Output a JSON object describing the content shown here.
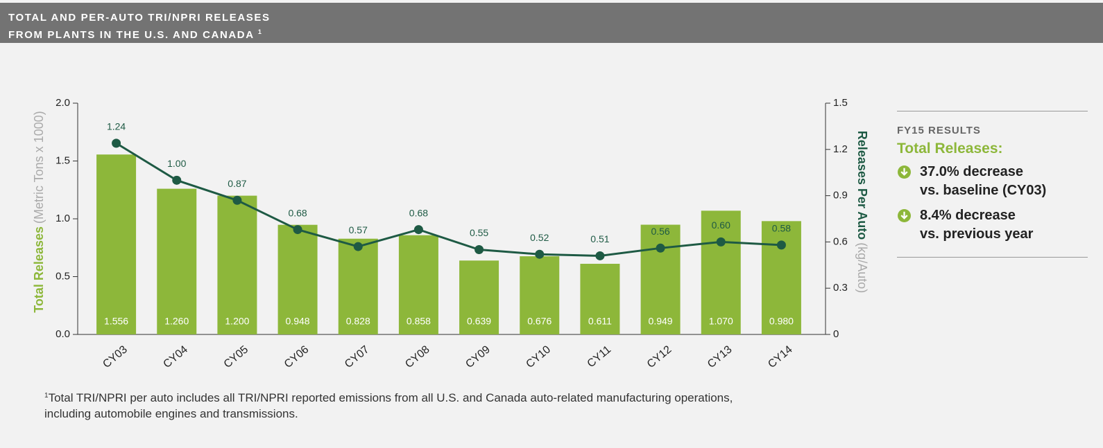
{
  "header": {
    "title_lines": [
      "TOTAL AND PER-AUTO TRI/NPRI RELEASES",
      "FROM PLANTS IN THE U.S. AND CANADA"
    ],
    "note_marker": "1"
  },
  "chart_data": {
    "type": "bar",
    "categories": [
      "CY03",
      "CY04",
      "CY05",
      "CY06",
      "CY07",
      "CY08",
      "CY09",
      "CY10",
      "CY11",
      "CY12",
      "CY13",
      "CY14"
    ],
    "series": [
      {
        "type": "bar",
        "color": "#8db73a",
        "values": [
          1.556,
          1.26,
          1.2,
          0.948,
          0.828,
          0.858,
          0.639,
          0.676,
          0.611,
          0.949,
          1.07,
          0.98
        ],
        "value_labels": [
          "1.556",
          "1.260",
          "1.200",
          "0.948",
          "0.828",
          "0.858",
          "0.639",
          "0.676",
          "0.611",
          "0.949",
          "1.070",
          "0.980"
        ]
      },
      {
        "type": "line",
        "axis": "y2",
        "color": "#1e5a44",
        "values": [
          1.24,
          1.0,
          0.87,
          0.68,
          0.57,
          0.68,
          0.55,
          0.52,
          0.51,
          0.56,
          0.6,
          0.58
        ],
        "value_labels": [
          "1.24",
          "1.00",
          "0.87",
          "0.68",
          "0.57",
          "0.68",
          "0.55",
          "0.52",
          "0.51",
          "0.56",
          "0.60",
          "0.58"
        ]
      }
    ],
    "ylabel": {
      "text": "Total Releases",
      "unit": "(Metric Tons x 1000)"
    },
    "y2label": {
      "text": "Releases Per Auto",
      "unit": "(kg/Auto)"
    },
    "ylim": [
      0,
      2
    ],
    "yticks": [
      {
        "value": 0,
        "label": "0.0"
      },
      {
        "value": 0.5,
        "label": "0.5"
      },
      {
        "value": 1,
        "label": "1.0"
      },
      {
        "value": 1.5,
        "label": "1.5"
      },
      {
        "value": 2,
        "label": "2.0"
      }
    ],
    "y2lim": [
      0,
      1.5
    ],
    "y2ticks": [
      0,
      0.3,
      0.6,
      0.9,
      1.2,
      1.5
    ]
  },
  "results": {
    "heading": "FY15 RESULTS",
    "subheading": "Total Releases:",
    "items": [
      [
        "37.0% decrease",
        "vs. baseline (CY03)"
      ],
      [
        "8.4% decrease",
        "vs. previous year"
      ]
    ]
  },
  "footnote": {
    "marker": "1",
    "lines": [
      "Total TRI/NPRI per auto includes all TRI/NPRI reported emissions from all U.S. and Canada auto-related manufacturing operations,",
      "including automobile engines and transmissions."
    ]
  }
}
